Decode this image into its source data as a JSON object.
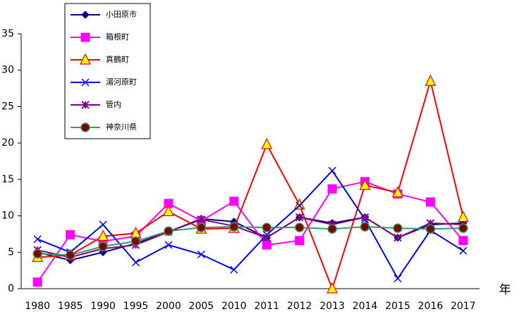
{
  "chart_data": {
    "type": "line",
    "x_label": "年",
    "categories": [
      "1980",
      "1985",
      "1990",
      "1995",
      "2000",
      "2005",
      "2010",
      "2011",
      "2012",
      "2013",
      "2014",
      "2015",
      "2016",
      "2017"
    ],
    "ylim": [
      0,
      35
    ],
    "yticks": [
      0,
      5,
      10,
      15,
      20,
      25,
      30,
      35
    ],
    "legend": "top-left",
    "series": [
      {
        "name": "小田原市",
        "color": "#000080",
        "marker": "diamond",
        "marker_fill": "#000080",
        "values": [
          5.0,
          3.9,
          5.0,
          6.2,
          7.8,
          9.6,
          9.2,
          7.0,
          9.8,
          9.0,
          9.8,
          7.0,
          8.8,
          9.0
        ]
      },
      {
        "name": "箱根町",
        "color": "#ff00ff",
        "marker": "square",
        "marker_fill": "#ff00ff",
        "values": [
          0.9,
          7.4,
          6.5,
          7.2,
          11.7,
          9.3,
          12.0,
          6.0,
          6.6,
          13.7,
          14.7,
          13.0,
          11.9,
          6.6
        ]
      },
      {
        "name": "真鶴町",
        "color": "#ff0000",
        "marker": "triangle",
        "marker_fill": "#ffff00",
        "values": [
          4.3,
          4.6,
          7.2,
          7.6,
          10.6,
          8.2,
          8.3,
          19.8,
          11.5,
          0,
          14.2,
          13.2,
          28.5,
          9.8
        ]
      },
      {
        "name": "湯河原町",
        "color": "#0000ff",
        "marker": "x",
        "marker_fill": "#0000ff",
        "values": [
          6.8,
          5.0,
          8.8,
          3.6,
          6.0,
          4.7,
          2.6,
          7.4,
          11.4,
          16.2,
          9.5,
          1.4,
          8.0,
          5.2
        ]
      },
      {
        "name": "管内",
        "color": "#800080",
        "marker": "star",
        "marker_fill": "#800080",
        "values": [
          5.3,
          4.3,
          5.5,
          6.0,
          7.8,
          9.5,
          8.6,
          7.0,
          9.8,
          8.8,
          9.8,
          7.0,
          9.0,
          8.8
        ]
      },
      {
        "name": "神奈川県",
        "color": "#339966",
        "marker": "circle",
        "marker_fill": "#800000",
        "values": [
          4.8,
          4.6,
          5.8,
          6.5,
          7.9,
          8.4,
          8.5,
          8.4,
          8.4,
          8.2,
          8.5,
          8.3,
          8.2,
          8.3
        ]
      }
    ]
  }
}
